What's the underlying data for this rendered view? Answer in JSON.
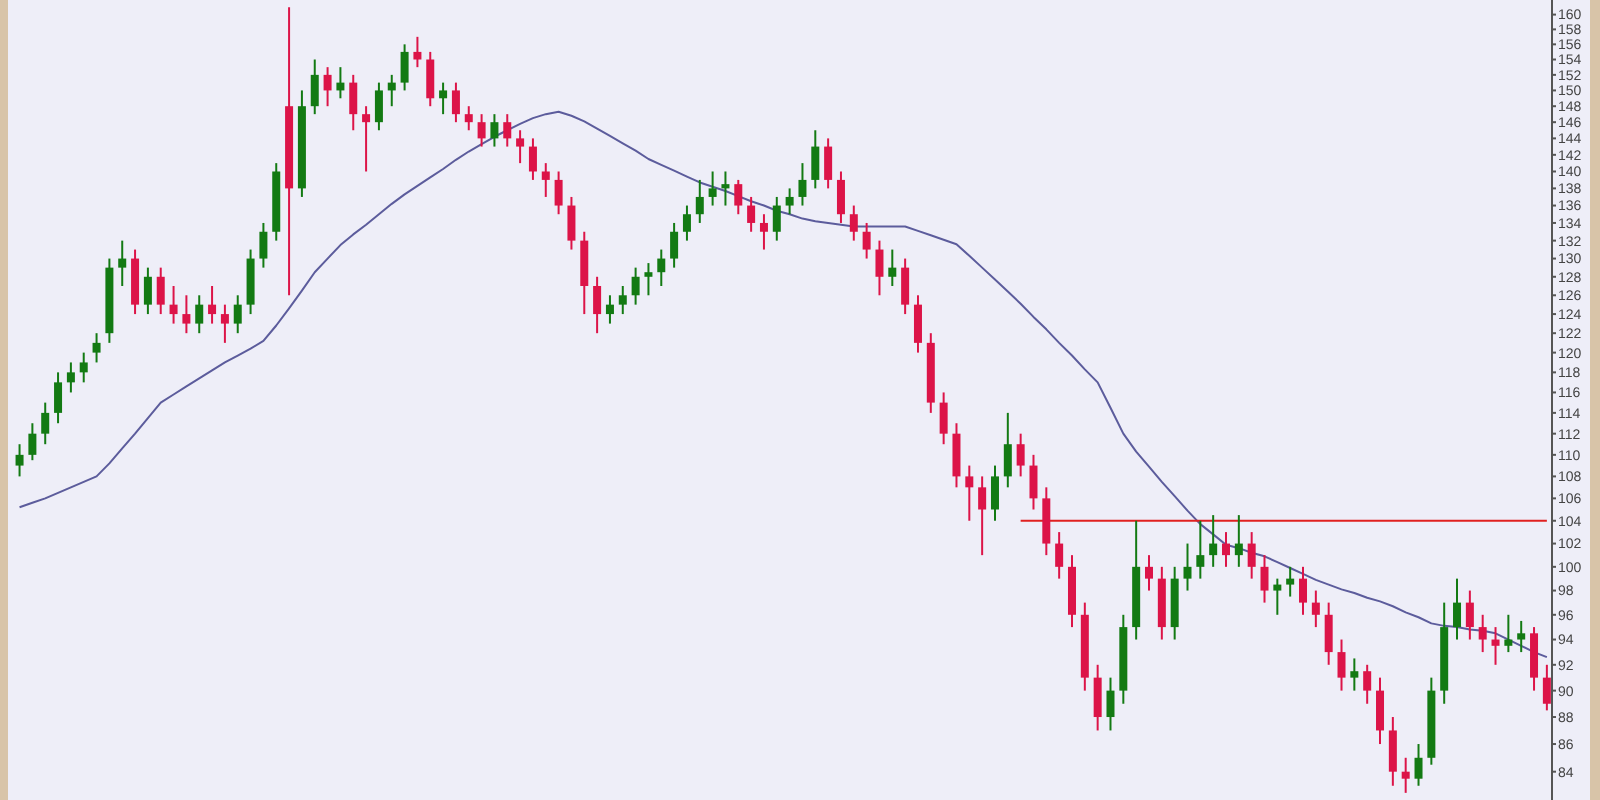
{
  "chart_data": {
    "type": "candlestick",
    "log": true,
    "tick_labels": "y",
    "ylim": [
      82,
      162
    ],
    "yticks": [
      84,
      86,
      88,
      90,
      92,
      94,
      96,
      98,
      100,
      102,
      104,
      106,
      108,
      110,
      112,
      114,
      116,
      118,
      120,
      122,
      124,
      126,
      128,
      130,
      132,
      134,
      136,
      138,
      140,
      142,
      144,
      146,
      148,
      150,
      152,
      154,
      156,
      158,
      160
    ],
    "categories": [
      null,
      null,
      null,
      null,
      null,
      null,
      null,
      null,
      null,
      null,
      null,
      null,
      null,
      null,
      null,
      null,
      null,
      null,
      null,
      null,
      null,
      null,
      null,
      null,
      null,
      null,
      null,
      null,
      null,
      null,
      null,
      null,
      null,
      null,
      null,
      null,
      null,
      null,
      null,
      null,
      null,
      null,
      null,
      null,
      null,
      null,
      null,
      null,
      null,
      null,
      null,
      null,
      null,
      null,
      null,
      null,
      null,
      null,
      null,
      null,
      null,
      null,
      null,
      null,
      null,
      null,
      null,
      null,
      null,
      null,
      null,
      null,
      null,
      null,
      null,
      null,
      null,
      null,
      null,
      null,
      null,
      null,
      null,
      null,
      null,
      null,
      null,
      null,
      null,
      null,
      null,
      null,
      null,
      null,
      null,
      null,
      null,
      null,
      null,
      null,
      null,
      null,
      null,
      null,
      null,
      null,
      null,
      null,
      null,
      null,
      null,
      null,
      null,
      null,
      null,
      null,
      null,
      null,
      null,
      null
    ],
    "ohlc": [
      [
        109,
        111,
        108,
        110
      ],
      [
        110,
        113,
        109.5,
        112
      ],
      [
        112,
        115,
        111,
        114
      ],
      [
        114,
        118,
        113,
        117
      ],
      [
        117,
        119,
        116,
        118
      ],
      [
        118,
        120,
        117,
        119
      ],
      [
        120,
        122,
        119,
        121
      ],
      [
        122,
        130,
        121,
        129
      ],
      [
        129,
        132,
        127,
        130
      ],
      [
        130,
        131,
        124,
        125
      ],
      [
        125,
        129,
        124,
        128
      ],
      [
        128,
        129,
        124,
        125
      ],
      [
        125,
        127,
        123,
        124
      ],
      [
        124,
        126,
        122,
        123
      ],
      [
        123,
        126,
        122,
        125
      ],
      [
        125,
        127,
        123,
        124
      ],
      [
        124,
        125,
        121,
        123
      ],
      [
        123,
        126,
        122,
        125
      ],
      [
        125,
        131,
        124,
        130
      ],
      [
        130,
        134,
        129,
        133
      ],
      [
        133,
        141,
        132,
        140
      ],
      [
        148,
        161,
        126,
        138
      ],
      [
        138,
        150,
        137,
        148
      ],
      [
        148,
        154,
        147,
        152
      ],
      [
        152,
        153,
        148,
        150
      ],
      [
        150,
        153,
        149,
        151
      ],
      [
        151,
        152,
        145,
        147
      ],
      [
        147,
        148,
        140,
        146
      ],
      [
        146,
        151,
        145,
        150
      ],
      [
        150,
        152,
        148,
        151
      ],
      [
        151,
        156,
        150,
        155
      ],
      [
        155,
        157,
        153,
        154
      ],
      [
        154,
        155,
        148,
        149
      ],
      [
        149,
        151,
        147,
        150
      ],
      [
        150,
        151,
        146,
        147
      ],
      [
        147,
        148,
        145,
        146
      ],
      [
        146,
        147,
        143,
        144
      ],
      [
        144,
        147,
        143,
        146
      ],
      [
        146,
        147,
        143,
        144
      ],
      [
        144,
        145,
        141,
        143
      ],
      [
        143,
        144,
        139,
        140
      ],
      [
        140,
        141,
        137,
        139
      ],
      [
        139,
        140,
        135,
        136
      ],
      [
        136,
        137,
        131,
        132
      ],
      [
        132,
        133,
        124,
        127
      ],
      [
        127,
        128,
        122,
        124
      ],
      [
        124,
        126,
        123,
        125
      ],
      [
        125,
        127,
        124,
        126
      ],
      [
        126,
        129,
        125,
        128
      ],
      [
        128,
        129.5,
        126,
        128.5
      ],
      [
        128.5,
        131,
        127,
        130
      ],
      [
        130,
        134,
        129,
        133
      ],
      [
        133,
        136,
        132,
        135
      ],
      [
        135,
        139,
        134,
        137
      ],
      [
        137,
        140,
        136,
        138
      ],
      [
        138,
        140,
        136,
        138.5
      ],
      [
        138.5,
        139,
        135,
        136
      ],
      [
        136,
        137,
        133,
        134
      ],
      [
        134,
        135,
        131,
        133
      ],
      [
        133,
        137,
        132,
        136
      ],
      [
        136,
        138,
        135,
        137
      ],
      [
        137,
        141,
        136,
        139
      ],
      [
        139,
        145,
        138,
        143
      ],
      [
        143,
        144,
        138,
        139
      ],
      [
        139,
        140,
        134,
        135
      ],
      [
        135,
        136,
        132,
        133
      ],
      [
        133,
        134,
        130,
        131
      ],
      [
        131,
        132,
        126,
        128
      ],
      [
        128,
        131,
        127,
        129
      ],
      [
        129,
        130,
        124,
        125
      ],
      [
        125,
        126,
        120,
        121
      ],
      [
        121,
        122,
        114,
        115
      ],
      [
        115,
        116,
        111,
        112
      ],
      [
        112,
        113,
        107,
        108
      ],
      [
        108,
        109,
        104,
        107
      ],
      [
        107,
        108,
        101,
        105
      ],
      [
        105,
        109,
        104,
        108
      ],
      [
        108,
        114,
        107,
        111
      ],
      [
        111,
        112,
        108,
        109
      ],
      [
        109,
        110,
        105,
        106
      ],
      [
        106,
        107,
        101,
        102
      ],
      [
        102,
        103,
        99,
        100
      ],
      [
        100,
        101,
        95,
        96
      ],
      [
        96,
        97,
        90,
        91
      ],
      [
        91,
        92,
        87,
        88
      ],
      [
        88,
        91,
        87,
        90
      ],
      [
        90,
        96,
        89,
        95
      ],
      [
        95,
        104,
        94,
        100
      ],
      [
        100,
        101,
        98,
        99
      ],
      [
        99,
        100,
        94,
        95
      ],
      [
        95,
        100,
        94,
        99
      ],
      [
        99,
        102,
        98,
        100
      ],
      [
        100,
        104,
        99,
        101
      ],
      [
        101,
        104.5,
        100,
        102
      ],
      [
        102,
        103,
        100,
        101
      ],
      [
        101,
        104.5,
        100,
        102
      ],
      [
        102,
        103,
        99,
        100
      ],
      [
        100,
        101,
        97,
        98
      ],
      [
        98,
        99,
        96,
        98.5
      ],
      [
        98.5,
        100,
        97.5,
        99
      ],
      [
        99,
        100,
        96,
        97
      ],
      [
        97,
        98,
        95,
        96
      ],
      [
        96,
        97,
        92,
        93
      ],
      [
        93,
        94,
        90,
        91
      ],
      [
        91,
        92.5,
        90,
        91.5
      ],
      [
        91.5,
        92,
        89,
        90
      ],
      [
        90,
        91,
        86,
        87
      ],
      [
        87,
        88,
        83,
        84
      ],
      [
        84,
        85,
        82.5,
        83.5
      ],
      [
        83.5,
        86,
        83,
        85
      ],
      [
        85,
        91,
        84.5,
        90
      ],
      [
        90,
        97,
        89,
        95
      ],
      [
        95,
        99,
        94,
        97
      ],
      [
        97,
        98,
        94,
        95
      ],
      [
        95,
        96,
        93,
        94
      ],
      [
        94,
        95,
        92,
        93.5
      ],
      [
        93.5,
        96,
        93,
        94
      ],
      [
        94,
        95.5,
        93,
        94.5
      ],
      [
        94.5,
        95,
        90,
        91
      ],
      [
        91,
        92,
        88.5,
        89
      ]
    ],
    "series": [
      {
        "type": "line",
        "color": "#5c5c9c",
        "values": [
          105.2,
          105.6,
          106,
          106.5,
          107,
          107.5,
          108,
          109.2,
          110.6,
          112,
          113.5,
          115,
          115.8,
          116.6,
          117.4,
          118.2,
          119,
          119.7,
          120.4,
          121.2,
          122.8,
          124.6,
          126.5,
          128.5,
          130,
          131.5,
          132.7,
          133.8,
          135,
          136.2,
          137.3,
          138.3,
          139.3,
          140.3,
          141.4,
          142.4,
          143.3,
          144.2,
          145,
          145.8,
          146.5,
          147,
          147.3,
          146.8,
          146.1,
          145.2,
          144.3,
          143.4,
          142.5,
          141.5,
          140.8,
          140.1,
          139.4,
          138.7,
          138.2,
          137.7,
          137.1,
          136.5,
          136,
          135.4,
          135,
          134.5,
          134.2,
          134,
          133.8,
          133.6,
          133.6,
          133.6,
          133.6,
          133.6,
          133.1,
          132.6,
          132.1,
          131.6,
          130.3,
          129,
          127.7,
          126.4,
          125.1,
          123.7,
          122.4,
          121,
          119.7,
          118.3,
          117,
          114.5,
          112,
          110.3,
          108.9,
          107.5,
          106.2,
          104.9,
          103.7,
          102.8,
          101.9,
          101.6,
          101.2,
          100.9,
          100.4,
          99.9,
          99.4,
          98.9,
          98.5,
          98.1,
          97.8,
          97.4,
          97.1,
          96.7,
          96.2,
          95.8,
          95.3,
          95.1,
          95,
          94.8,
          94.7,
          94.5,
          94,
          93.5,
          93,
          92.6
        ]
      },
      {
        "type": "line",
        "color": "#e02020",
        "values": [
          null,
          null,
          null,
          null,
          null,
          null,
          null,
          null,
          null,
          null,
          null,
          null,
          null,
          null,
          null,
          null,
          null,
          null,
          null,
          null,
          null,
          null,
          null,
          null,
          null,
          null,
          null,
          null,
          null,
          null,
          null,
          null,
          null,
          null,
          null,
          null,
          null,
          null,
          null,
          null,
          null,
          null,
          null,
          null,
          null,
          null,
          null,
          null,
          null,
          null,
          null,
          null,
          null,
          null,
          null,
          null,
          null,
          null,
          null,
          null,
          null,
          null,
          null,
          null,
          null,
          null,
          null,
          null,
          null,
          null,
          null,
          null,
          null,
          null,
          null,
          null,
          null,
          null,
          104,
          104,
          104,
          104,
          104,
          104,
          104,
          104,
          104,
          104,
          104,
          104,
          104,
          104,
          104,
          104,
          104,
          104,
          104,
          104,
          104,
          104,
          104,
          104,
          104,
          104,
          104,
          104,
          104,
          104,
          104,
          104,
          104,
          104,
          104,
          104,
          104,
          104,
          104,
          104,
          104,
          104
        ]
      }
    ]
  }
}
